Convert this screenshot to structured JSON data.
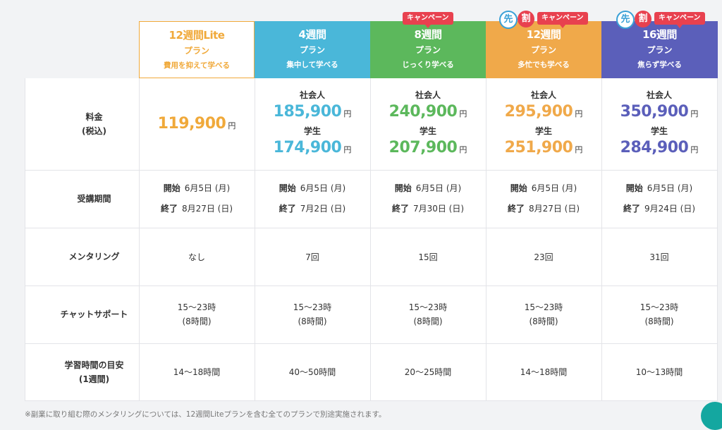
{
  "colors": {
    "lite": "#f0a93a",
    "plan4": "#4ab7d9",
    "plan8": "#5cb85c",
    "plan12": "#f0a94a",
    "plan16": "#5b5fba",
    "campaign": "#e8414f",
    "saki": "#3aa0d6"
  },
  "badges": {
    "campaign": "キャンペーン",
    "saki": "先",
    "wari": "割"
  },
  "plans": [
    {
      "name": "12週間Lite",
      "plan": "プラン",
      "desc": "費用を抑えて学べる"
    },
    {
      "name": "4週間",
      "plan": "プラン",
      "desc": "集中して学べる"
    },
    {
      "name": "8週間",
      "plan": "プラン",
      "desc": "じっくり学べる"
    },
    {
      "name": "12週間",
      "plan": "プラン",
      "desc": "多忙でも学べる"
    },
    {
      "name": "16週間",
      "plan": "プラン",
      "desc": "焦らず学べる"
    }
  ],
  "row_labels": {
    "price_line1": "料金",
    "price_line2": "(税込)",
    "period": "受講期間",
    "mentoring": "メンタリング",
    "chat": "チャットサポート",
    "study_line1": "学習時間の目安",
    "study_line2": "(1週間)"
  },
  "price_labels": {
    "worker": "社会人",
    "student": "学生",
    "yen": "円"
  },
  "prices": {
    "lite": "119,900",
    "p4": {
      "worker": "185,900",
      "student": "174,900"
    },
    "p8": {
      "worker": "240,900",
      "student": "207,900"
    },
    "p12": {
      "worker": "295,900",
      "student": "251,900"
    },
    "p16": {
      "worker": "350,900",
      "student": "284,900"
    }
  },
  "period_labels": {
    "start": "開始",
    "end": "終了"
  },
  "periods": [
    {
      "start": "6月5日 (月)",
      "end": "8月27日 (日)"
    },
    {
      "start": "6月5日 (月)",
      "end": "7月2日 (日)"
    },
    {
      "start": "6月5日 (月)",
      "end": "7月30日 (日)"
    },
    {
      "start": "6月5日 (月)",
      "end": "8月27日 (日)"
    },
    {
      "start": "6月5日 (月)",
      "end": "9月24日 (日)"
    }
  ],
  "mentoring": [
    "なし",
    "7回",
    "15回",
    "23回",
    "31回"
  ],
  "chat": {
    "hours": "15〜23時",
    "duration": "(8時間)"
  },
  "study": [
    "14〜18時間",
    "40〜50時間",
    "20〜25時間",
    "14〜18時間",
    "10〜13時間"
  ],
  "footnote": "※副業に取り組む際のメンタリングについては、12週間Liteプランを含む全てのプランで別途実施されます。"
}
